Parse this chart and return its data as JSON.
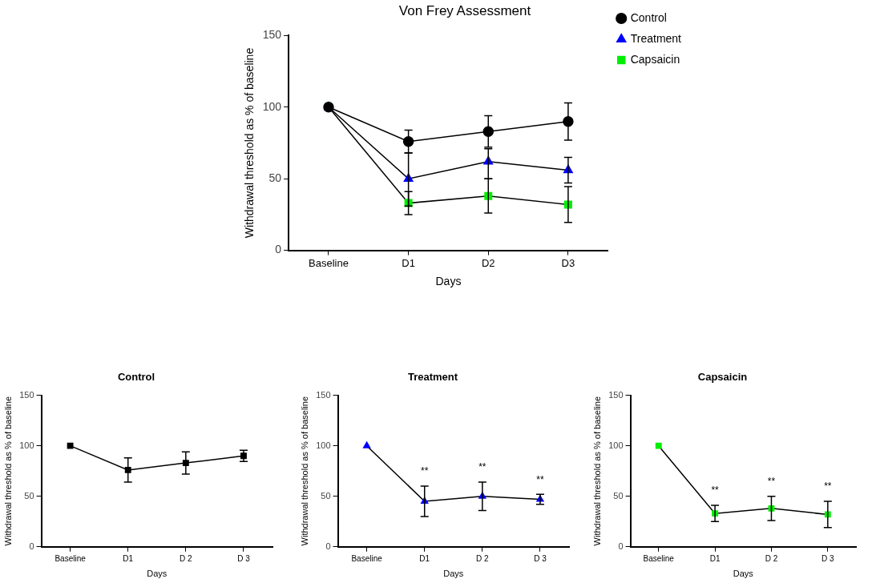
{
  "chart_data": [
    {
      "type": "line",
      "title": "Von Frey Assessment",
      "xlabel": "Days",
      "ylabel": "Withdrawal threshold as % of baseline",
      "categories": [
        "Baseline",
        "D1",
        "D2",
        "D3"
      ],
      "ylim": [
        0,
        150
      ],
      "yticks": [
        0,
        50,
        100,
        150
      ],
      "grid": false,
      "legend": "right",
      "series": [
        {
          "name": "Control",
          "color": "#000000",
          "marker": "circle",
          "values": [
            100,
            76,
            83,
            90
          ],
          "errors": [
            null,
            8,
            11,
            13
          ]
        },
        {
          "name": "Treatment",
          "color": "#0000ff",
          "marker": "triangle",
          "values": [
            100,
            50,
            62,
            56
          ],
          "errors": [
            null,
            [
              31,
              68
            ],
            [
              50,
              71
            ],
            [
              47,
              65
            ]
          ]
        },
        {
          "name": "Capsaicin",
          "color": "#00ee00",
          "marker": "square",
          "values": [
            100,
            33,
            38,
            32
          ],
          "errors": [
            null,
            8,
            12,
            12.5
          ]
        }
      ]
    },
    {
      "type": "line",
      "title": "Control",
      "xlabel": "Days",
      "ylabel": "Withdrawal threshold as % of baseline",
      "categories": [
        "Baseline",
        "D1",
        "D 2",
        "D 3"
      ],
      "ylim": [
        0,
        150
      ],
      "yticks": [
        0,
        50,
        100,
        150
      ],
      "grid": false,
      "series": [
        {
          "color": "#000000",
          "marker": "square",
          "values": [
            100,
            76,
            83,
            90
          ],
          "errors": [
            null,
            12,
            11,
            5.5
          ]
        }
      ]
    },
    {
      "type": "line",
      "title": "Treatment",
      "xlabel": "Days",
      "ylabel": "Withdrawal threshold as % of baseline",
      "categories": [
        "Baseline",
        "D1",
        "D 2",
        "D 3"
      ],
      "ylim": [
        0,
        150
      ],
      "yticks": [
        0,
        50,
        100,
        150
      ],
      "grid": false,
      "annotations": [
        "**",
        "**",
        "**"
      ],
      "series": [
        {
          "color": "#0000ff",
          "marker": "triangle",
          "values": [
            100,
            45,
            50,
            47
          ],
          "errors": [
            null,
            15,
            14,
            5
          ]
        }
      ]
    },
    {
      "type": "line",
      "title": "Capsaicin",
      "xlabel": "Days",
      "ylabel": "Withdrawal threshold as % of baseline",
      "categories": [
        "Baseline",
        "D1",
        "D 2",
        "D 3"
      ],
      "ylim": [
        0,
        150
      ],
      "yticks": [
        0,
        50,
        100,
        150
      ],
      "grid": false,
      "annotations": [
        "**",
        "**",
        "**"
      ],
      "series": [
        {
          "color": "#00ee00",
          "marker": "square",
          "values": [
            100,
            33,
            38,
            32
          ],
          "errors": [
            null,
            8,
            12,
            13
          ]
        }
      ]
    }
  ]
}
